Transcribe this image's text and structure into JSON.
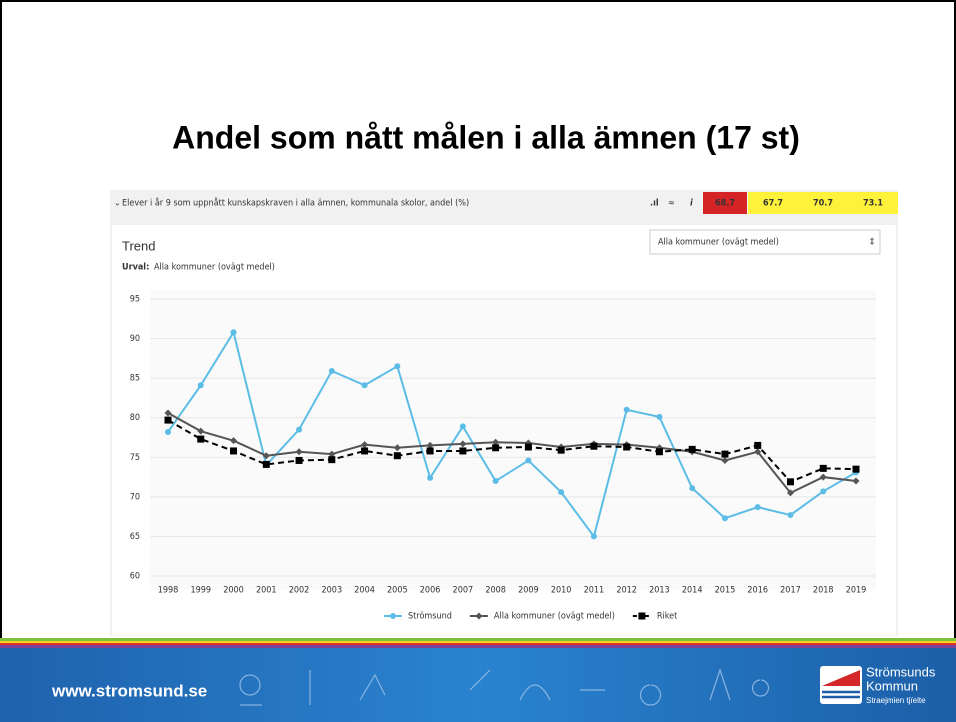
{
  "slide": {
    "title": "Andel som nått målen i alla ämnen (17 st)",
    "indicator": "Elever i år 9 som uppnått kunskapskraven i alla ämnen, kommunala skolor, andel (%)",
    "header_values": [
      68.7,
      67.7,
      70.7,
      73.1
    ],
    "panel_title": "Trend",
    "selection_label": "Urval:",
    "selection": "Alla kommuner (ovägt medel)",
    "dropdown": "Alla kommuner (ovägt medel)",
    "footer_url": "www.stromsund.se",
    "logo": [
      "Strömsunds",
      "Kommun",
      "Straejmien tjïelte"
    ]
  },
  "chart_data": {
    "type": "line",
    "categories": [
      "1998",
      "1999",
      "2000",
      "2001",
      "2002",
      "2003",
      "2004",
      "2005",
      "2006",
      "2007",
      "2008",
      "2009",
      "2010",
      "2011",
      "2012",
      "2013",
      "2014",
      "2015",
      "2016",
      "2017",
      "2018",
      "2019"
    ],
    "series": [
      {
        "name": "Strömsund",
        "color": "#5bbde6",
        "marker": "circle",
        "dash": false,
        "values": [
          78.2,
          84.1,
          90.8,
          74.0,
          78.5,
          85.9,
          84.1,
          86.5,
          72.4,
          78.9,
          72.0,
          74.6,
          70.6,
          65.0,
          81.0,
          80.1,
          71.1,
          67.3,
          68.7,
          67.7,
          70.7,
          73.1
        ]
      },
      {
        "name": "Alla kommuner (ovägt medel)",
        "color": "#555555",
        "marker": "diamond",
        "dash": false,
        "values": [
          80.6,
          78.3,
          77.1,
          75.2,
          75.7,
          75.4,
          76.6,
          76.2,
          76.5,
          76.7,
          76.9,
          76.8,
          76.3,
          76.7,
          76.6,
          76.2,
          75.7,
          74.6,
          75.7,
          70.5,
          72.5,
          72.0
        ]
      },
      {
        "name": "Riket",
        "color": "#000000",
        "marker": "square",
        "dash": true,
        "values": [
          79.7,
          77.3,
          75.8,
          74.1,
          74.6,
          74.7,
          75.8,
          75.2,
          75.8,
          75.8,
          76.2,
          76.3,
          75.9,
          76.4,
          76.3,
          75.7,
          76.0,
          75.4,
          76.5,
          71.9,
          73.6,
          73.5
        ]
      }
    ],
    "ylim": [
      60,
      95
    ],
    "yticks": [
      60,
      65,
      70,
      75,
      80,
      85,
      90,
      95
    ],
    "grid": true
  }
}
